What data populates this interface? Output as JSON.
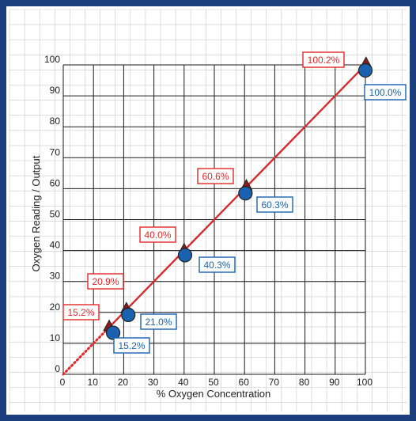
{
  "chart_data": {
    "type": "scatter",
    "title": "",
    "xlabel": "% Oxygen Concentration",
    "ylabel": "Oxygen Reading / Output",
    "xlim": [
      0,
      100
    ],
    "ylim": [
      0,
      100
    ],
    "grid": true,
    "x_ticks": [
      0,
      10,
      20,
      30,
      40,
      50,
      60,
      70,
      80,
      90,
      100
    ],
    "y_ticks": [
      0,
      10,
      20,
      30,
      40,
      50,
      60,
      70,
      80,
      90,
      100
    ],
    "series": [
      {
        "marker": "triangle",
        "color": "#e02828",
        "x": [
          15.2,
          20.9,
          40.0,
          60.6,
          100.2
        ],
        "y": [
          15.2,
          20.9,
          40.0,
          60.6,
          100.2
        ],
        "labels": [
          "15.2%",
          "20.9%",
          "40.0%",
          "60.6%",
          "100.2%"
        ]
      },
      {
        "marker": "circle",
        "color": "#1a62b0",
        "x": [
          15.2,
          21.0,
          40.3,
          60.3,
          100.0
        ],
        "y": [
          15.2,
          21.0,
          40.3,
          60.3,
          100.0
        ],
        "labels": [
          "15.2%",
          "21.0%",
          "40.3%",
          "60.3%",
          "100.0%"
        ]
      }
    ],
    "extrapolation": {
      "from": [
        0,
        0
      ],
      "to": [
        15.2,
        15.2
      ],
      "style": "dotted",
      "color": "#e02828"
    }
  },
  "colors": {
    "frame": "#1c3d7e",
    "grid": "#c8c8c8",
    "major_grid": "#1a1a1a",
    "marker_fill": "#8b1a1a",
    "circle_fill": "#1a62b0"
  }
}
